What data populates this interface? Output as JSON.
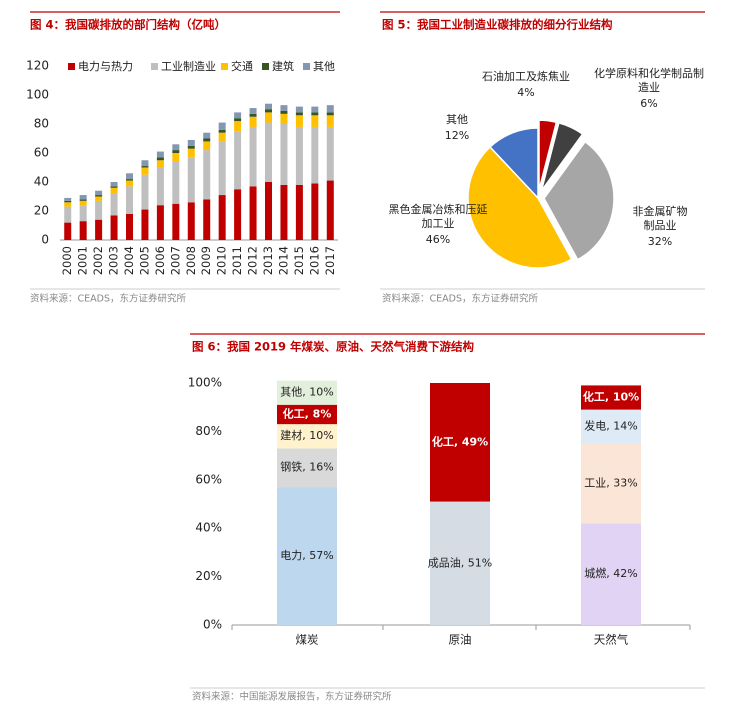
{
  "chart_data": [
    {
      "type": "stacked_bar",
      "title": "图 4：我国碳排放的部门结构（亿吨）",
      "source": "资料来源：CEADS，东方证券研究所",
      "categories": [
        "2000",
        "2001",
        "2002",
        "2003",
        "2004",
        "2005",
        "2006",
        "2007",
        "2008",
        "2009",
        "2010",
        "2011",
        "2012",
        "2013",
        "2014",
        "2015",
        "2016",
        "2017"
      ],
      "series": [
        {
          "name": "电力与热力",
          "color": "#c00000",
          "values": [
            12,
            13,
            14,
            17,
            18,
            21,
            24,
            25,
            26,
            28,
            31,
            35,
            37,
            40,
            38,
            38,
            39,
            41
          ]
        },
        {
          "name": "工业制造业",
          "color": "#bfbfbf",
          "values": [
            11,
            11,
            13,
            15,
            19,
            24,
            26,
            29,
            31,
            34,
            37,
            40,
            41,
            41,
            42,
            40,
            39,
            37
          ]
        },
        {
          "name": "交通",
          "color": "#ffc000",
          "values": [
            3,
            3,
            3,
            4,
            4,
            5,
            5,
            6,
            6,
            6,
            6,
            7,
            7,
            7,
            7,
            8,
            8,
            8
          ]
        },
        {
          "name": "建筑",
          "color": "#375623",
          "values": [
            1,
            1,
            1,
            1,
            1,
            1,
            2,
            2,
            2,
            2,
            2,
            2,
            2,
            2,
            2,
            2,
            2,
            2
          ]
        },
        {
          "name": "其他",
          "color": "#8497b0",
          "values": [
            2,
            3,
            3,
            3,
            4,
            4,
            4,
            4,
            4,
            4,
            5,
            4,
            4,
            4,
            4,
            4,
            4,
            5
          ]
        }
      ],
      "ylim": [
        0,
        120
      ],
      "yticks": [
        0,
        20,
        40,
        60,
        80,
        100,
        120
      ],
      "grid": false
    },
    {
      "type": "pie",
      "title": "图 5：我国工业制造业碳排放的细分行业结构",
      "source": "资料来源：CEADS，东方证券研究所",
      "categories": [
        "石油加工及炼焦业",
        "化学原料和化学制品制造业",
        "非金属矿物制品业",
        "黑色金属冶炼和压延加工业",
        "其他"
      ],
      "values": [
        4,
        6,
        32,
        46,
        12
      ],
      "value_labels": [
        "4%",
        "6%",
        "32%",
        "46%",
        "12%"
      ],
      "colors": [
        "#c00000",
        "#404040",
        "#a6a6a6",
        "#ffc000",
        "#4472c4"
      ]
    },
    {
      "type": "stacked_bar_segments",
      "title": "图 6：我国 2019 年煤炭、原油、天然气消费下游结构",
      "source": "资料来源：中国能源发展报告，东方证券研究所",
      "categories": [
        "煤炭",
        "原油",
        "天然气"
      ],
      "stacks": [
        [
          {
            "value": 57,
            "label": "电力, 57%",
            "color": "#bdd7ee"
          },
          {
            "value": 16,
            "label": "钢铁, 16%",
            "color": "#d9d9d9"
          },
          {
            "value": 10,
            "label": "建材, 10%",
            "color": "#fff2cc"
          },
          {
            "value": 8,
            "label": "化工, 8%",
            "color": "#c00000"
          },
          {
            "value": 10,
            "label": "其他, 10%",
            "color": "#e2efda"
          }
        ],
        [
          {
            "value": 51,
            "label": "成品油, 51%",
            "color": "#d6dce4"
          },
          {
            "value": 49,
            "label": "化工, 49%",
            "color": "#c00000"
          }
        ],
        [
          {
            "value": 42,
            "label": "城燃, 42%",
            "color": "#e0d3f3"
          },
          {
            "value": 33,
            "label": "工业, 33%",
            "color": "#fbe5d6"
          },
          {
            "value": 14,
            "label": "发电, 14%",
            "color": "#deebf7"
          },
          {
            "value": 10,
            "label": "化工, 10%",
            "color": "#c00000"
          }
        ]
      ],
      "ylim": [
        0,
        100
      ],
      "yticks": [
        {
          "value": 0,
          "label": "0%"
        },
        {
          "value": 20,
          "label": "20%"
        },
        {
          "value": 40,
          "label": "40%"
        },
        {
          "value": 60,
          "label": "60%"
        },
        {
          "value": 80,
          "label": "80%"
        },
        {
          "value": 100,
          "label": "100%"
        }
      ]
    }
  ]
}
